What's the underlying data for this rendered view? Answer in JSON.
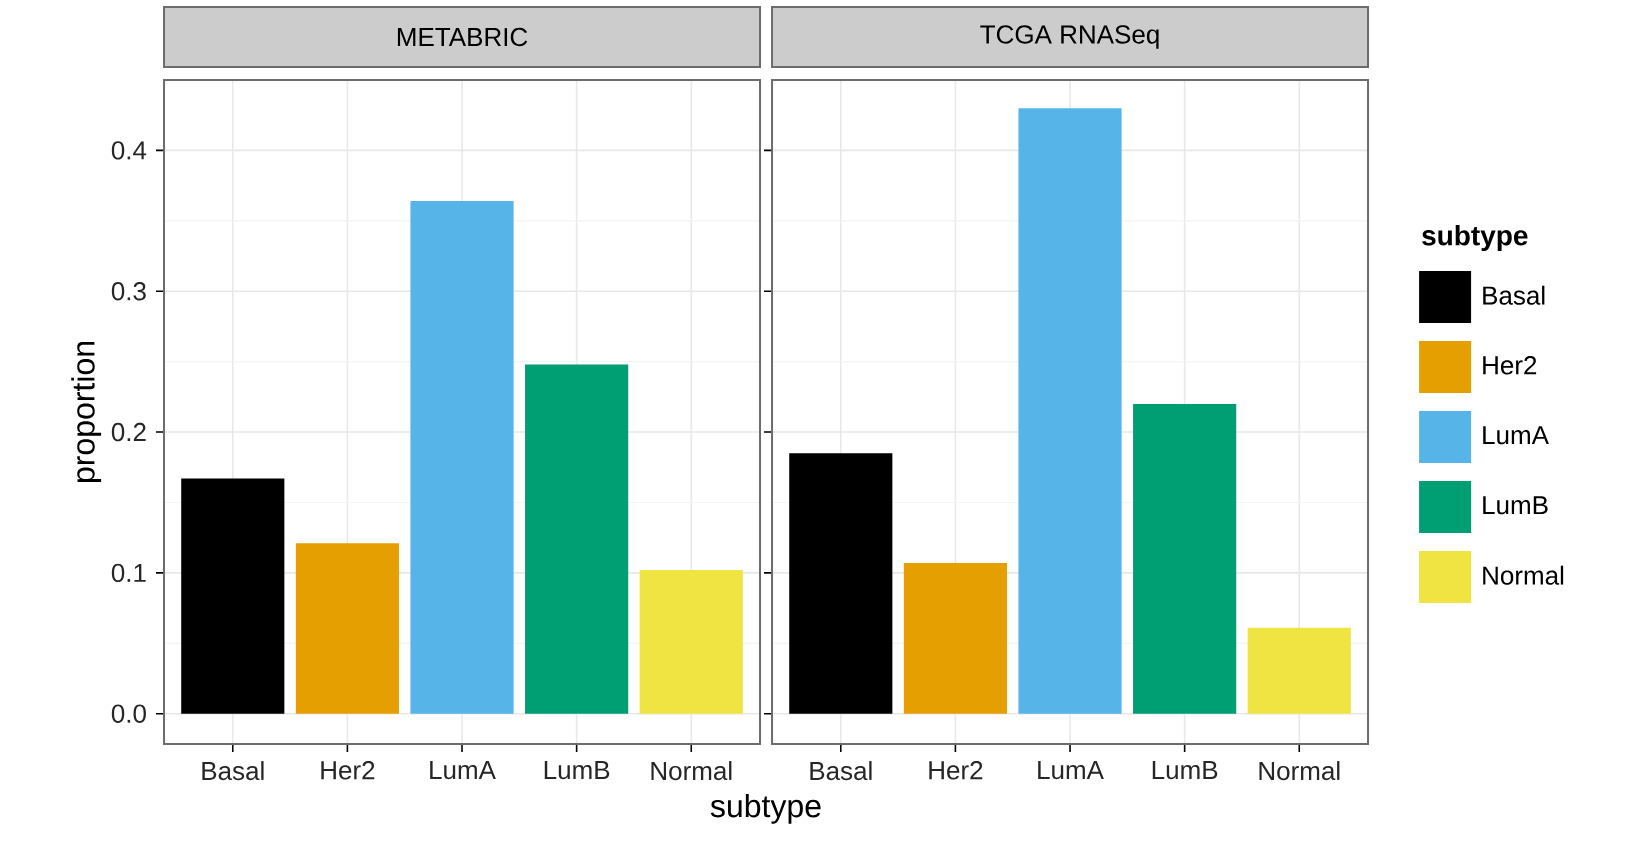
{
  "chart_data": [
    {
      "type": "bar",
      "title": "METABRIC",
      "xlabel": "subtype",
      "ylabel": "proportion",
      "categories": [
        "Basal",
        "Her2",
        "LumA",
        "LumB",
        "Normal"
      ],
      "series": [
        {
          "color": "#000000",
          "values": [
            0.167,
            null,
            null,
            null,
            null
          ]
        },
        {
          "color": "#e69f00",
          "values": [
            null,
            0.121,
            null,
            null,
            null
          ]
        },
        {
          "color": "#56b4e9",
          "values": [
            null,
            null,
            0.364,
            null,
            null
          ]
        },
        {
          "color": "#009e73",
          "values": [
            null,
            null,
            null,
            0.248,
            null
          ]
        },
        {
          "color": "#f0e442",
          "values": [
            null,
            null,
            null,
            null,
            0.102
          ]
        }
      ],
      "ylim": [
        -0.0215,
        0.45
      ],
      "yticks": [
        {
          "value": 0,
          "label": "0.0"
        },
        0.1,
        0.2,
        0.3,
        0.4
      ],
      "grid": true
    },
    {
      "type": "bar",
      "title": "TCGA RNASeq",
      "legend_title": "subtype",
      "legend": "right",
      "tick_labels": "x",
      "categories": [
        "Basal",
        "Her2",
        "LumA",
        "LumB",
        "Normal"
      ],
      "series": [
        {
          "name": "Basal",
          "color": "#000000",
          "values": [
            0.185,
            null,
            null,
            null,
            null
          ]
        },
        {
          "name": "Her2",
          "color": "#e69f00",
          "values": [
            null,
            0.107,
            null,
            null,
            null
          ]
        },
        {
          "name": "LumA",
          "color": "#56b4e9",
          "values": [
            null,
            null,
            0.43,
            null,
            null
          ]
        },
        {
          "name": "LumB",
          "color": "#009e73",
          "values": [
            null,
            null,
            null,
            0.22,
            null
          ]
        },
        {
          "name": "Normal",
          "color": "#f0e442",
          "values": [
            null,
            null,
            null,
            null,
            0.061
          ]
        }
      ],
      "ylim": [
        -0.0215,
        0.45
      ],
      "yticks": [
        0,
        0.1,
        0.2,
        0.3,
        0.4
      ],
      "grid": true
    }
  ]
}
